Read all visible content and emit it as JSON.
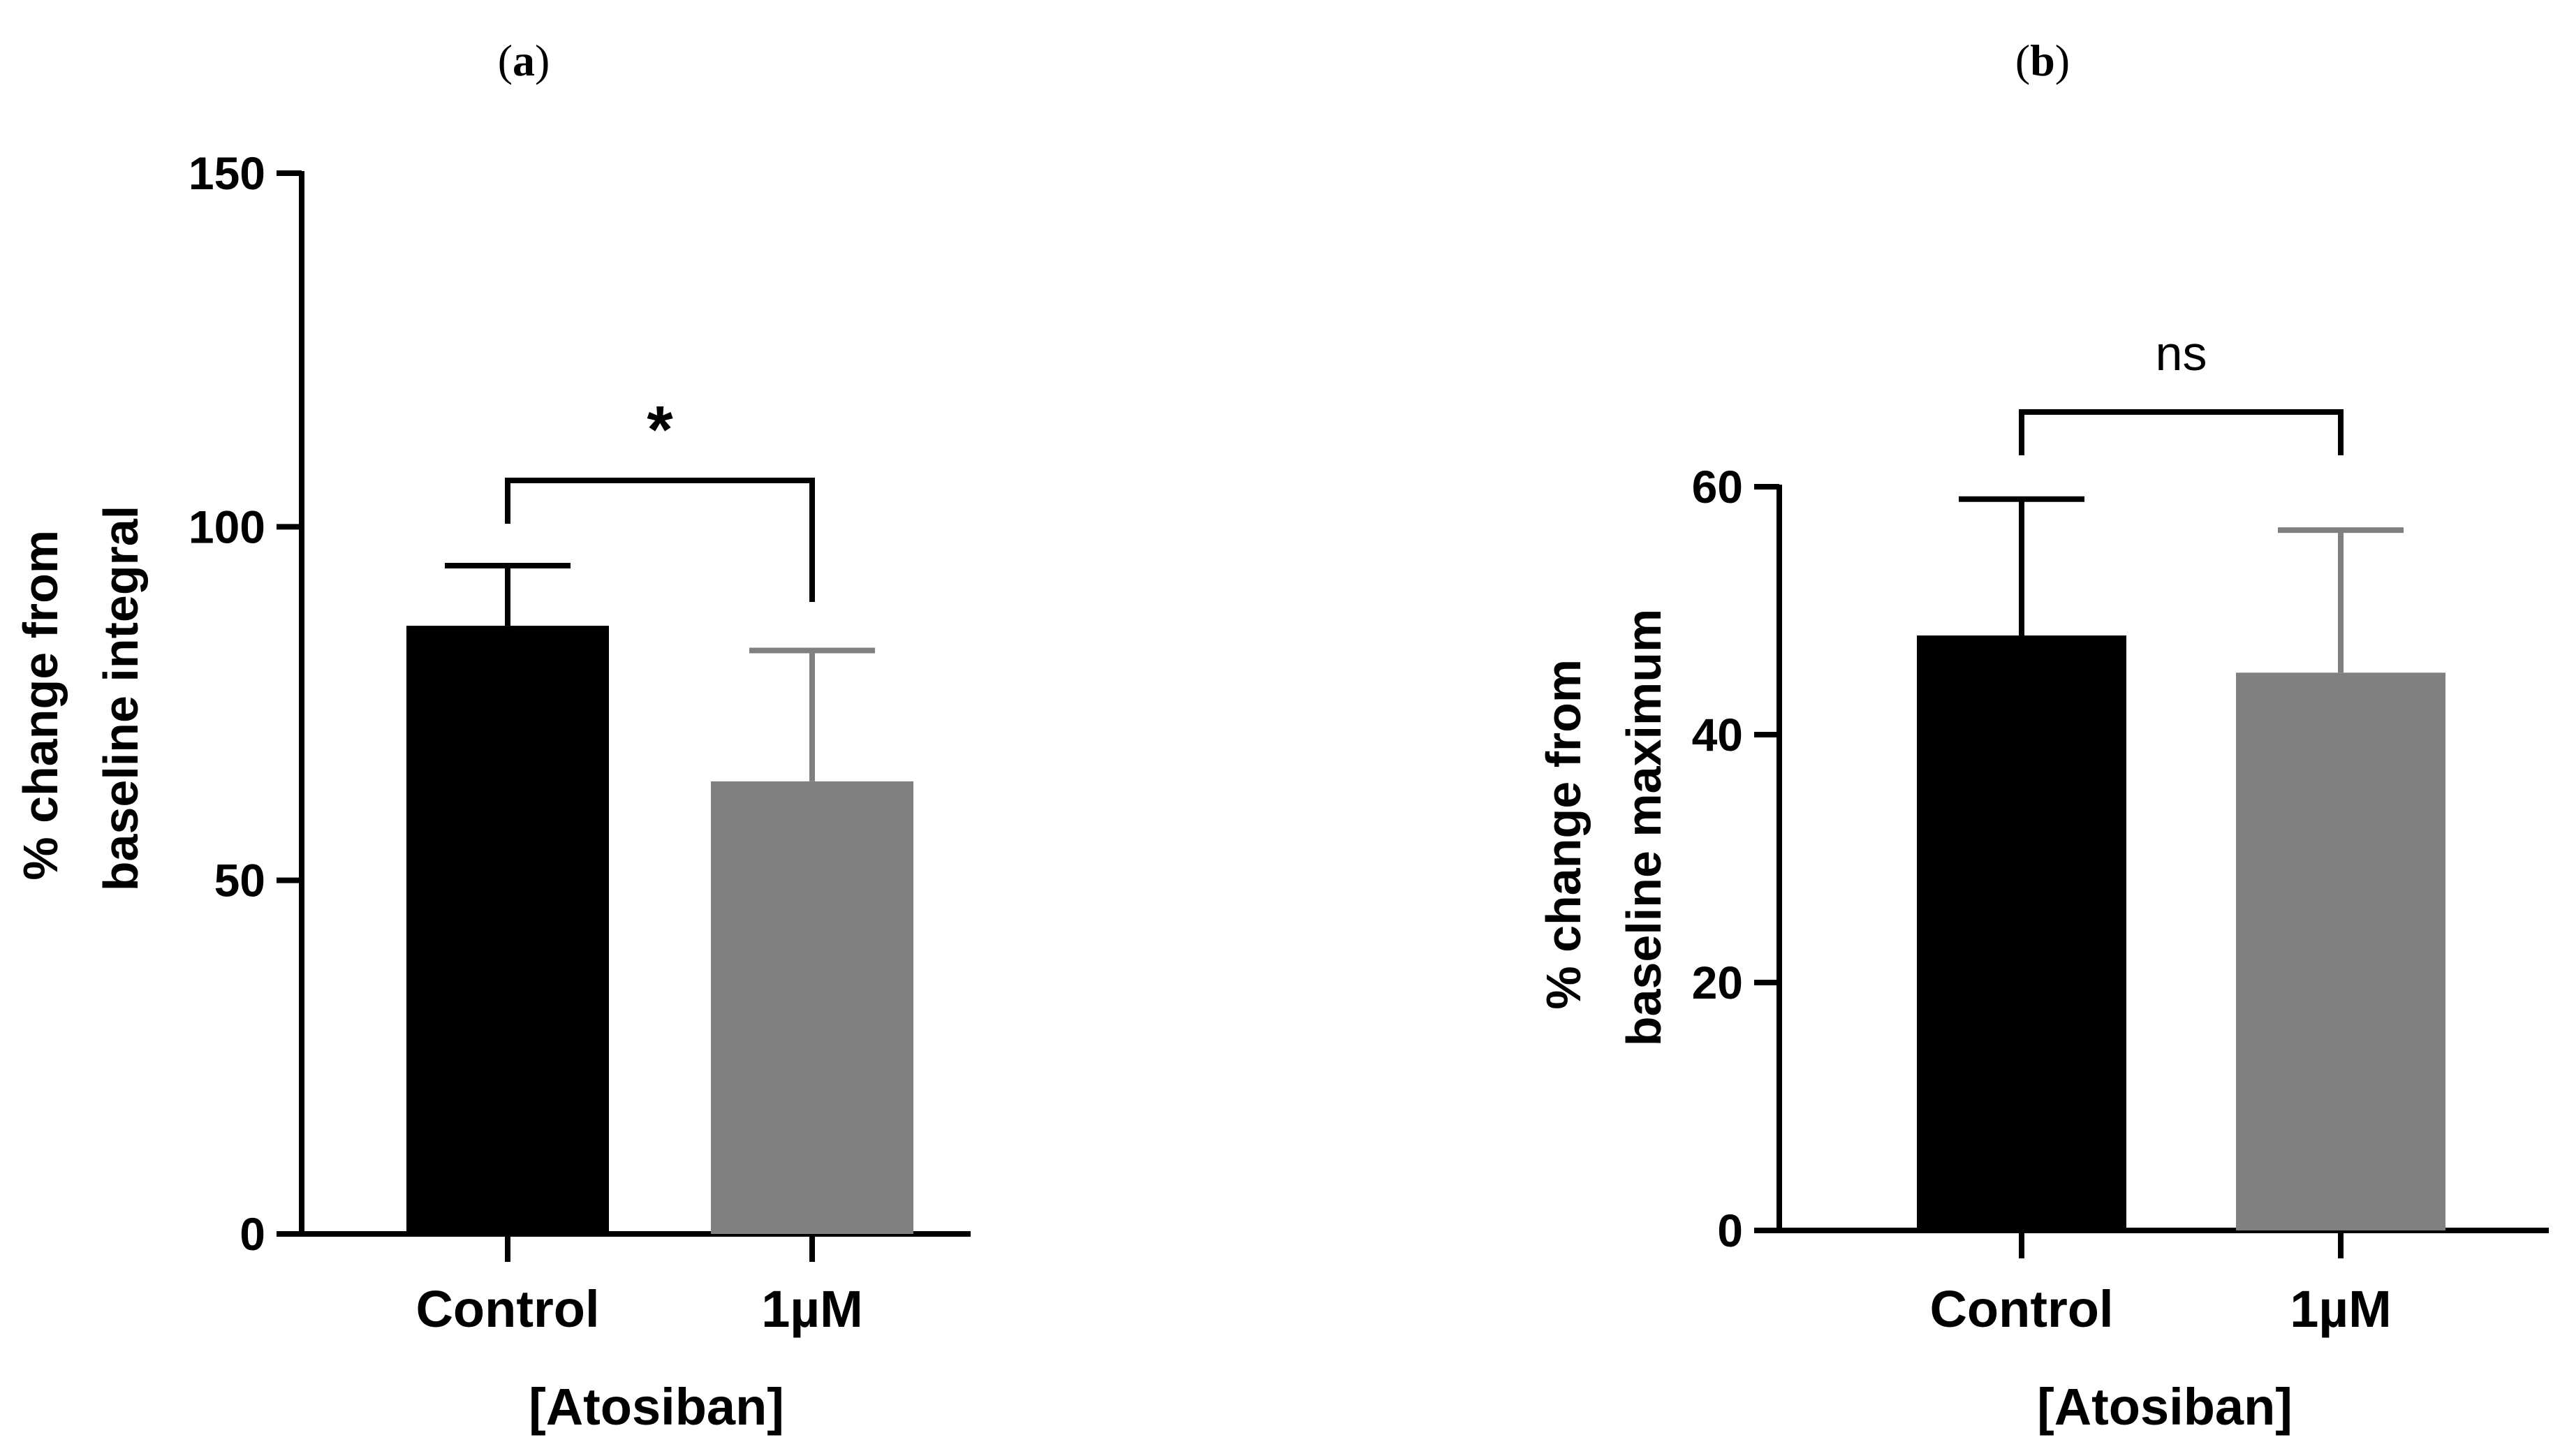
{
  "chart_data": [
    {
      "panel": "(a)",
      "type": "bar",
      "categories": [
        "Control",
        "1µM"
      ],
      "values": [
        86,
        64
      ],
      "error_upper": [
        94.5,
        82.5
      ],
      "bar_colors": [
        "#000000",
        "#808080"
      ],
      "ylabel_line1": "% change from",
      "ylabel_line2": "baseline integral",
      "xlabel": "[Atosiban]",
      "ylim": [
        0,
        150
      ],
      "yticks": [
        0,
        50,
        100,
        150
      ],
      "significance": {
        "label": "*",
        "bracket_value": 100
      }
    },
    {
      "panel": "(b)",
      "type": "bar",
      "categories": [
        "Control",
        "1µM"
      ],
      "values": [
        48,
        45
      ],
      "error_upper": [
        59,
        56.5
      ],
      "bar_colors": [
        "#000000",
        "#808080"
      ],
      "ylabel_line1": "% change from",
      "ylabel_line2": "baseline maximum",
      "xlabel": "[Atosiban]",
      "ylim": [
        0,
        60
      ],
      "yticks": [
        0,
        20,
        40,
        60
      ],
      "significance": {
        "label": "ns",
        "bracket_value": 66
      }
    }
  ]
}
